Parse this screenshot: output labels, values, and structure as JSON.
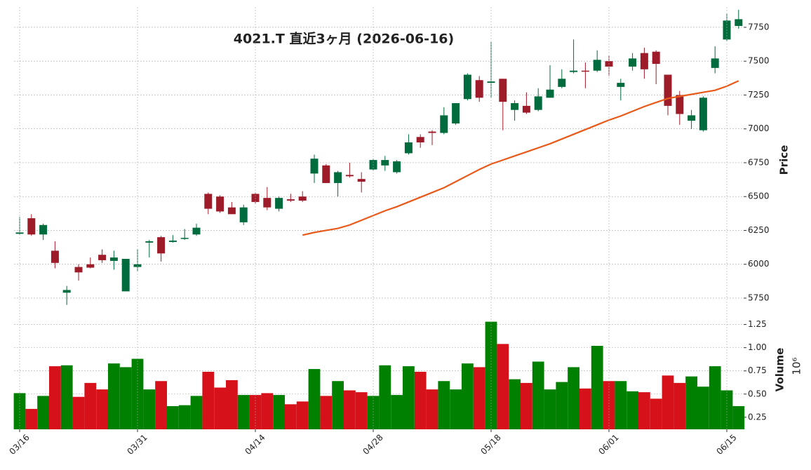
{
  "chart_data": [
    {
      "type": "candlestick",
      "title": "4021.T  直近3ヶ月  (2026-06-16)",
      "ylabel": "Price",
      "open": [
        6225,
        6340,
        6220,
        6100,
        5790,
        5980,
        6000,
        6070,
        6025,
        5800,
        5980,
        6160,
        6200,
        6165,
        6190,
        6220,
        6520,
        6500,
        6420,
        6310,
        6520,
        6490,
        6410,
        6480,
        6500,
        6670,
        6730,
        6600,
        6660,
        6630,
        6700,
        6730,
        6680,
        6820,
        6940,
        6980,
        6970,
        7040,
        7220,
        7360,
        7340,
        7370,
        7140,
        7170,
        7140,
        7230,
        7310,
        7420,
        7430,
        7430,
        7500,
        7310,
        7460,
        7560,
        7570,
        7400,
        7250,
        7060,
        6990,
        7450,
        7660,
        7760
      ],
      "high": [
        6350,
        6370,
        6300,
        6170,
        5840,
        6000,
        6050,
        6110,
        6100,
        6040,
        6110,
        6180,
        6210,
        6215,
        6260,
        6300,
        6530,
        6510,
        6460,
        6440,
        6530,
        6570,
        6500,
        6520,
        6540,
        6810,
        6740,
        6690,
        6750,
        6680,
        6780,
        6800,
        6770,
        6960,
        6960,
        6990,
        7160,
        7190,
        7410,
        7390,
        7640,
        7370,
        7210,
        7270,
        7300,
        7470,
        7440,
        7660,
        7490,
        7580,
        7540,
        7370,
        7560,
        7600,
        7580,
        7400,
        7280,
        7140,
        7240,
        7610,
        7850,
        7880
      ],
      "low": [
        6220,
        6210,
        6180,
        5970,
        5700,
        5880,
        5970,
        6010,
        5960,
        5800,
        5950,
        6050,
        6020,
        6160,
        6180,
        6210,
        6370,
        6380,
        6370,
        6290,
        6450,
        6400,
        6390,
        6460,
        6460,
        6600,
        6600,
        6500,
        6640,
        6530,
        6690,
        6690,
        6670,
        6810,
        6860,
        6880,
        6960,
        7030,
        7210,
        7200,
        7230,
        6990,
        7060,
        7110,
        7130,
        7230,
        7300,
        7410,
        7300,
        7420,
        7390,
        7210,
        7430,
        7370,
        7330,
        7100,
        7030,
        7000,
        6980,
        7410,
        7650,
        7740
      ],
      "close": [
        6235,
        6220,
        6290,
        6010,
        5810,
        5940,
        5975,
        6030,
        6050,
        6040,
        6000,
        6170,
        6080,
        6175,
        6195,
        6270,
        6410,
        6390,
        6370,
        6420,
        6460,
        6420,
        6490,
        6470,
        6470,
        6780,
        6600,
        6680,
        6650,
        6610,
        6770,
        6770,
        6760,
        6900,
        6900,
        6970,
        7100,
        7190,
        7400,
        7230,
        7350,
        7200,
        7190,
        7120,
        7240,
        7290,
        7370,
        7430,
        7425,
        7510,
        7460,
        7340,
        7520,
        7440,
        7480,
        7170,
        7110,
        7100,
        7230,
        7520,
        7800,
        7810
      ],
      "up_color": "#006b3c",
      "down_color": "#9e1c2a",
      "moving_average": {
        "color": "#e8591a",
        "values": [
          null,
          null,
          null,
          null,
          null,
          null,
          null,
          null,
          null,
          null,
          null,
          null,
          null,
          null,
          null,
          null,
          null,
          null,
          null,
          null,
          null,
          null,
          null,
          null,
          6215,
          6235,
          6250,
          6265,
          6290,
          6325,
          6360,
          6395,
          6425,
          6460,
          6495,
          6530,
          6565,
          6610,
          6655,
          6700,
          6740,
          6770,
          6800,
          6830,
          6860,
          6890,
          6925,
          6960,
          6995,
          7030,
          7065,
          7095,
          7130,
          7165,
          7195,
          7225,
          7240,
          7255,
          7270,
          7285,
          7315,
          7355
        ]
      },
      "ylim": [
        5610,
        7900
      ],
      "yticks": [
        5750,
        6000,
        6250,
        6500,
        6750,
        7000,
        7250,
        7500,
        7750
      ],
      "grid": true
    },
    {
      "type": "bar",
      "ylabel": "Volume",
      "multiplier": "10⁶",
      "categories": [
        "03/16",
        null,
        null,
        null,
        null,
        null,
        null,
        null,
        null,
        null,
        "03/31",
        null,
        null,
        null,
        null,
        null,
        null,
        null,
        null,
        null,
        "04/14",
        null,
        null,
        null,
        null,
        null,
        null,
        null,
        null,
        null,
        "04/28",
        null,
        null,
        null,
        null,
        null,
        null,
        null,
        null,
        null,
        "05/18",
        null,
        null,
        null,
        null,
        null,
        null,
        null,
        null,
        null,
        "06/01",
        null,
        null,
        null,
        null,
        null,
        null,
        null,
        null,
        null,
        "06/15",
        null
      ],
      "values": [
        0.51,
        0.34,
        0.48,
        0.8,
        0.81,
        0.47,
        0.62,
        0.55,
        0.83,
        0.79,
        0.88,
        0.55,
        0.64,
        0.37,
        0.38,
        0.48,
        0.74,
        0.57,
        0.65,
        0.49,
        0.49,
        0.51,
        0.49,
        0.39,
        0.42,
        0.77,
        0.48,
        0.64,
        0.54,
        0.52,
        0.48,
        0.81,
        0.49,
        0.8,
        0.74,
        0.55,
        0.64,
        0.55,
        0.83,
        0.79,
        1.28,
        1.04,
        0.66,
        0.62,
        0.85,
        0.55,
        0.63,
        0.79,
        0.56,
        1.02,
        0.64,
        0.64,
        0.53,
        0.52,
        0.45,
        0.7,
        0.62,
        0.69,
        0.58,
        0.8,
        0.54,
        0.37
      ],
      "up_color": "#008000",
      "down_color": "#d7111a",
      "ylim": [
        0.12,
        1.33
      ],
      "yticks": [
        0.25,
        {
          "value": 0.5,
          "label": "0.50"
        },
        {
          "value": 0.75,
          "label": "0.75"
        },
        {
          "value": 1,
          "label": "1.00"
        },
        1.25
      ],
      "grid": true
    }
  ]
}
